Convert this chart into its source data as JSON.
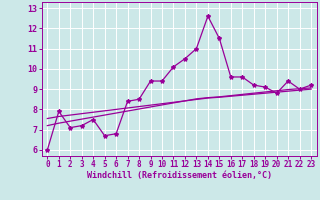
{
  "title": "",
  "xlabel": "Windchill (Refroidissement éolien,°C)",
  "ylabel": "",
  "bg_color": "#cce8e8",
  "grid_color": "#ffffff",
  "line_color": "#990099",
  "ylim": [
    5.7,
    13.3
  ],
  "xlim": [
    -0.5,
    23.5
  ],
  "yticks": [
    6,
    7,
    8,
    9,
    10,
    11,
    12,
    13
  ],
  "xticks": [
    0,
    1,
    2,
    3,
    4,
    5,
    6,
    7,
    8,
    9,
    10,
    11,
    12,
    13,
    14,
    15,
    16,
    17,
    18,
    19,
    20,
    21,
    22,
    23
  ],
  "x": [
    0,
    1,
    2,
    3,
    4,
    5,
    6,
    7,
    8,
    9,
    10,
    11,
    12,
    13,
    14,
    15,
    16,
    17,
    18,
    19,
    20,
    21,
    22,
    23
  ],
  "y_main": [
    6.0,
    7.9,
    7.1,
    7.2,
    7.5,
    6.7,
    6.8,
    8.4,
    8.5,
    9.4,
    9.4,
    10.1,
    10.5,
    11.0,
    12.6,
    11.5,
    9.6,
    9.6,
    9.2,
    9.1,
    8.8,
    9.4,
    9.0,
    9.2
  ],
  "y_line2": [
    7.55,
    7.65,
    7.72,
    7.79,
    7.86,
    7.93,
    8.0,
    8.07,
    8.14,
    8.21,
    8.28,
    8.35,
    8.42,
    8.49,
    8.56,
    8.6,
    8.65,
    8.7,
    8.75,
    8.8,
    8.85,
    8.9,
    8.95,
    9.0
  ],
  "y_line3": [
    7.2,
    7.32,
    7.42,
    7.52,
    7.62,
    7.72,
    7.82,
    7.92,
    8.02,
    8.12,
    8.22,
    8.32,
    8.42,
    8.52,
    8.58,
    8.62,
    8.68,
    8.74,
    8.8,
    8.86,
    8.92,
    8.98,
    9.02,
    9.06
  ]
}
